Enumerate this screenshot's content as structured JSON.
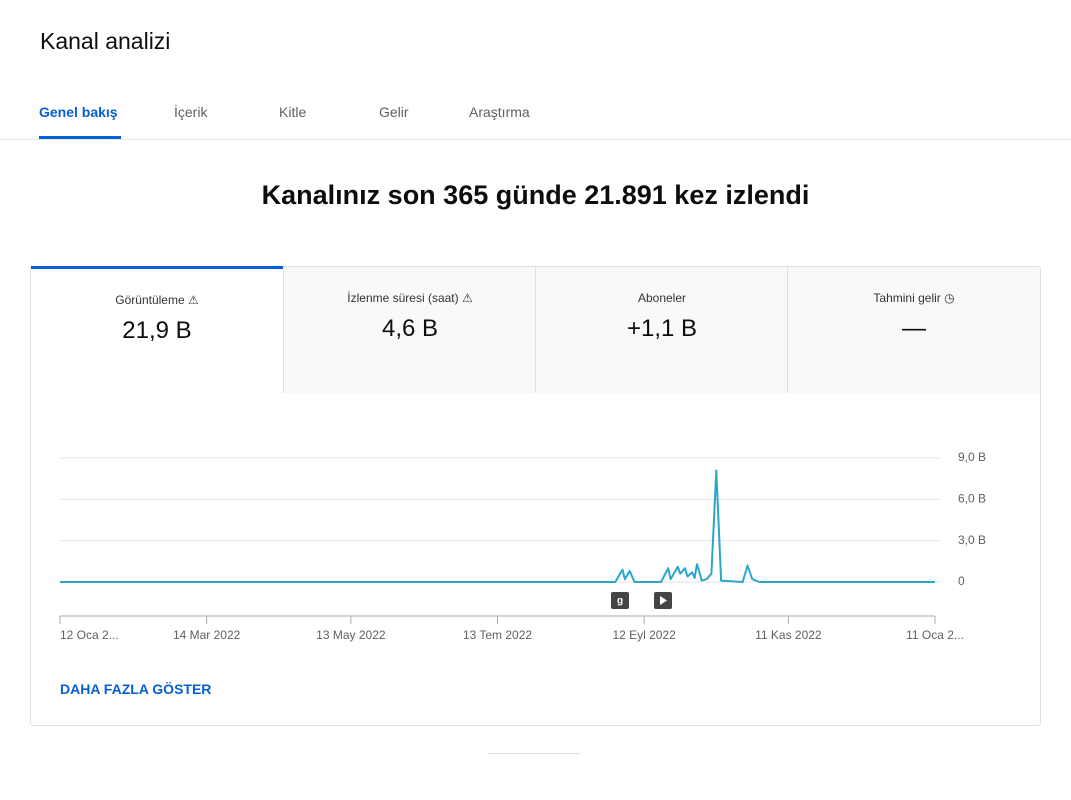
{
  "header": {
    "title": "Kanal analizi",
    "tabs": [
      "Genel bakış",
      "İçerik",
      "Kitle",
      "Gelir",
      "Araştırma"
    ]
  },
  "headline": "Kanalınız son 365 günde 21.891 kez izlendi",
  "metrics": [
    {
      "label": "Görüntüleme",
      "value": "21,9 B"
    },
    {
      "label": "İzlenme süresi (saat)",
      "value": "4,6 B"
    },
    {
      "label": "Aboneler",
      "value": "+1,1 B"
    },
    {
      "label": "Tahmini gelir",
      "value": "—"
    }
  ],
  "show_more": "DAHA FAZLA GÖSTER",
  "chart_data": {
    "type": "line",
    "color": "#2ba6cb",
    "annotation": "g",
    "x": [
      "2022-01-12",
      "2022-08-31",
      "2022-09-03",
      "2022-09-04",
      "2022-09-06",
      "2022-09-08",
      "2022-09-19",
      "2022-09-22",
      "2022-09-23",
      "2022-09-26",
      "2022-09-27",
      "2022-09-29",
      "2022-09-30",
      "2022-10-02",
      "2022-10-03",
      "2022-10-04",
      "2022-10-06",
      "2022-10-08",
      "2022-10-10",
      "2022-10-12",
      "2022-10-14",
      "2022-10-23",
      "2022-10-25",
      "2022-10-27",
      "2022-10-30",
      "2023-01-11"
    ],
    "values": [
      0,
      0,
      0.9,
      0.2,
      0.8,
      0,
      0,
      1.0,
      0.2,
      1.1,
      0.6,
      1.0,
      0.4,
      0.7,
      0.3,
      1.3,
      0.1,
      0.2,
      0.6,
      8.1,
      0.1,
      0,
      1.2,
      0.2,
      0,
      0
    ],
    "xlim": [
      "2022-01-12",
      "2023-01-11"
    ],
    "xticks": [
      {
        "value": "2022-01-12",
        "label": "12 Oca 2..."
      },
      {
        "value": "2022-03-14",
        "label": "14 Mar 2022"
      },
      {
        "value": "2022-05-13",
        "label": "13 May 2022"
      },
      {
        "value": "2022-07-13",
        "label": "13 Tem 2022"
      },
      {
        "value": "2022-09-12",
        "label": "12 Eyl 2022"
      },
      {
        "value": "2022-11-11",
        "label": "11 Kas 2022"
      },
      {
        "value": "2023-01-11",
        "label": "11 Oca 2..."
      }
    ],
    "ylim": [
      0,
      9
    ],
    "yticks": [
      {
        "value": 9,
        "label": "9,0 B"
      },
      {
        "value": 6,
        "label": "6,0 B"
      },
      {
        "value": 3,
        "label": "3,0 B"
      },
      0
    ],
    "grid": true
  }
}
